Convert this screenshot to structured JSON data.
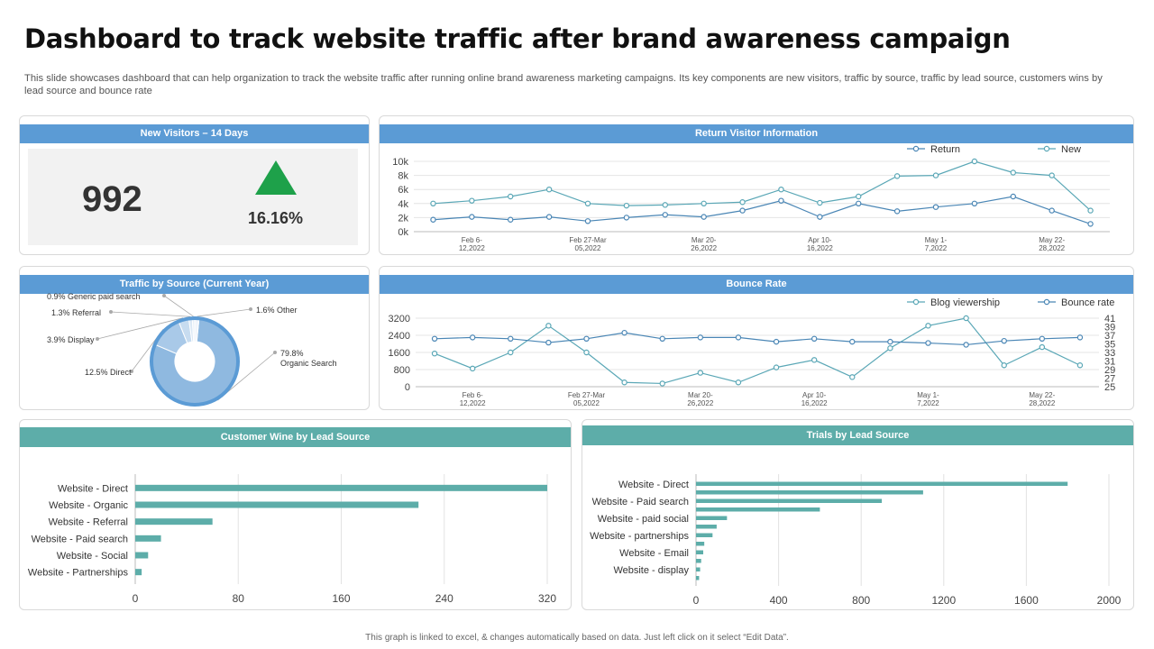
{
  "title": "Dashboard to track website traffic after brand awareness campaign",
  "subtitle": "This slide showcases dashboard that can help organization to track the website traffic after running online brand awareness marketing campaigns. Its key components are new visitors, traffic by source, traffic by lead source, customers wins by lead source and bounce rate",
  "footer": "This graph is linked to excel, & changes automatically based on data. Just left click on it select “Edit Data”.",
  "colors": {
    "blue_header": "#5b9bd5",
    "teal_header": "#5dada9",
    "up_arrow": "#1ea14a",
    "line": "#4a90b8",
    "donut": "#8fb9e0",
    "bar": "#5dada9"
  },
  "new_visitors": {
    "header": "New Visitors – 14 Days",
    "value": "992",
    "change": "16.16%",
    "trend_icon": "up-arrow-icon"
  },
  "chart_data": [
    {
      "id": "return_visitor",
      "type": "line",
      "title": "Return Visitor Information",
      "x_tick_labels": [
        [
          "Feb 6-",
          "12,2022"
        ],
        [
          "Feb 27-Mar",
          "05,2022"
        ],
        [
          "Mar 20-",
          "26,2022"
        ],
        [
          "Apr 10-",
          "16,2022"
        ],
        [
          "May 1-",
          "7,2022"
        ],
        [
          "May 22-",
          "28,2022"
        ]
      ],
      "x_tick_index": [
        1,
        4,
        7,
        10,
        13,
        16
      ],
      "ylim": [
        0,
        10000
      ],
      "y_ticks": [
        0,
        2000,
        4000,
        6000,
        8000,
        10000
      ],
      "y_tick_labels": [
        "0k",
        "2k",
        "4k",
        "6k",
        "8k",
        "10k"
      ],
      "legend_position": "top-right",
      "series": [
        {
          "name": "Return",
          "values": [
            1700,
            2100,
            1700,
            2100,
            1500,
            2000,
            2400,
            2100,
            3000,
            4400,
            2100,
            4000,
            2900,
            3500,
            4000,
            5000,
            3000,
            1100
          ]
        },
        {
          "name": "New",
          "values": [
            4000,
            4400,
            5000,
            6000,
            4000,
            3700,
            3800,
            4000,
            4200,
            6000,
            4100,
            5000,
            7900,
            8000,
            10000,
            8400,
            8000,
            3000
          ]
        }
      ]
    },
    {
      "id": "traffic_by_source",
      "type": "pie",
      "title": "Traffic by Source (Current Year)",
      "slices": [
        {
          "label": "Organic Search",
          "value": 79.8,
          "text": [
            "79.8%",
            "Organic Search"
          ]
        },
        {
          "label": "Direct",
          "value": 12.5,
          "text": [
            "12.5% Direct"
          ]
        },
        {
          "label": "Display",
          "value": 3.9,
          "text": [
            "3.9% Display"
          ]
        },
        {
          "label": "Referral",
          "value": 1.3,
          "text": [
            "1.3% Referral"
          ]
        },
        {
          "label": "Generic paid search",
          "value": 0.9,
          "text": [
            "0.9% Generic paid search"
          ]
        },
        {
          "label": "Other",
          "value": 1.6,
          "text": [
            "1.6% Other"
          ]
        }
      ]
    },
    {
      "id": "bounce_rate",
      "type": "line",
      "title": "Bounce Rate",
      "x_tick_labels": [
        [
          "Feb 6-",
          "12,2022"
        ],
        [
          "Feb 27-Mar",
          "05,2022"
        ],
        [
          "Mar 20-",
          "26,2022"
        ],
        [
          "Apr 10-",
          "16,2022"
        ],
        [
          "May 1-",
          "7,2022"
        ],
        [
          "May 22-",
          "28,2022"
        ]
      ],
      "x_tick_index": [
        1,
        4,
        7,
        10,
        13,
        16
      ],
      "ylim_left": [
        0,
        3200
      ],
      "y_ticks_left": [
        0,
        800,
        1600,
        2400,
        3200
      ],
      "ylim_right": [
        25,
        41
      ],
      "y_ticks_right": [
        25,
        27,
        29,
        31,
        33,
        35,
        37,
        39,
        41
      ],
      "legend_position": "top-right",
      "series": [
        {
          "name": "Blog viewership",
          "axis": "left",
          "values": [
            1550,
            850,
            1600,
            2850,
            1600,
            200,
            150,
            650,
            200,
            900,
            1250,
            450,
            1800,
            2850,
            3200,
            1000,
            1850,
            1000
          ]
        },
        {
          "name": "Bounce rate",
          "axis": "right",
          "values": [
            36.2,
            36.5,
            36.2,
            35.3,
            36.2,
            37.6,
            36.2,
            36.5,
            36.5,
            35.5,
            36.2,
            35.5,
            35.5,
            35.2,
            34.8,
            35.7,
            36.2,
            36.5
          ]
        }
      ]
    },
    {
      "id": "customer_wins",
      "type": "bar",
      "orientation": "horizontal",
      "title": "Customer Wine by Lead Source",
      "categories": [
        "Website - Direct",
        "Website - Organic",
        "Website - Referral",
        "Website - Paid search",
        "Website - Social",
        "Website - Partnerships"
      ],
      "values": [
        320,
        220,
        60,
        20,
        10,
        5
      ],
      "xlim": [
        0,
        320
      ],
      "x_ticks": [
        0,
        80,
        160,
        240,
        320
      ]
    },
    {
      "id": "trials",
      "type": "bar",
      "orientation": "horizontal",
      "title": "Trials by Lead Source",
      "categories": [
        "Website - Direct",
        "",
        "Website - Paid search",
        "",
        "Website - paid social",
        "",
        "Website - partnerships",
        "",
        "Website - Email",
        "",
        "Website - display",
        ""
      ],
      "values": [
        1800,
        1100,
        900,
        600,
        150,
        100,
        80,
        40,
        35,
        25,
        20,
        15
      ],
      "xlim": [
        0,
        2000
      ],
      "x_ticks": [
        0,
        400,
        800,
        1200,
        1600,
        2000
      ]
    }
  ]
}
